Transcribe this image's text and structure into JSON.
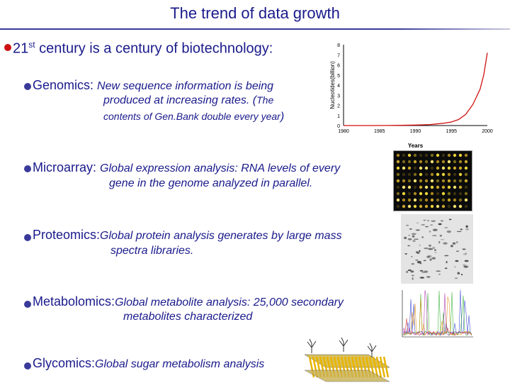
{
  "slide": {
    "title": "The trend of data growth",
    "intro_pre": "21",
    "intro_sup": "st",
    "intro_post": " century is a century of biotechnology:"
  },
  "bullets": [
    {
      "head": "Genomics",
      "sep": ": ",
      "text": "New sequence information is being",
      "text2": "produced at increasing rates. (",
      "text3": "The",
      "text4": "contents of Gen.Bank double every year",
      "text5": ")"
    },
    {
      "head": "Microarray",
      "sep": ": ",
      "text": "Global expression analysis: RNA levels of every",
      "text2": "gene in the genome analyzed in parallel."
    },
    {
      "head": "Proteomics",
      "sep": ":",
      "text": "Global protein analysis generates by large mass",
      "text2": "spectra libraries."
    },
    {
      "head": "Metabolomics",
      "sep": ":",
      "text": "Global metabolite analysis: 25,000 secondary",
      "text2": "metabolites characterized"
    },
    {
      "head": "Glycomics",
      "sep": ":",
      "text": "Global sugar metabolism analysis"
    }
  ],
  "chart_data": {
    "type": "line",
    "title": "",
    "xlabel": "Years",
    "ylabel": "Nucleotides(billion)",
    "xlim": [
      1980,
      2000
    ],
    "ylim": [
      0,
      8
    ],
    "x_ticks": [
      1980,
      1985,
      1990,
      1995,
      2000
    ],
    "y_ticks": [
      0,
      1,
      2,
      3,
      4,
      5,
      6,
      7,
      8
    ],
    "x": [
      1980,
      1982,
      1984,
      1986,
      1988,
      1990,
      1991,
      1992,
      1993,
      1994,
      1995,
      1996,
      1997,
      1998,
      1999,
      1999.5,
      2000
    ],
    "y": [
      0.0,
      0.0,
      0.0,
      0.01,
      0.02,
      0.05,
      0.07,
      0.1,
      0.16,
      0.24,
      0.35,
      0.6,
      1.1,
      2.1,
      3.6,
      5.0,
      7.2
    ],
    "color": "#d01010",
    "grid": false
  },
  "colors": {
    "text": "#1a1a8c",
    "rule": "#3a3a9a",
    "bullet_red": "#cc1111"
  }
}
